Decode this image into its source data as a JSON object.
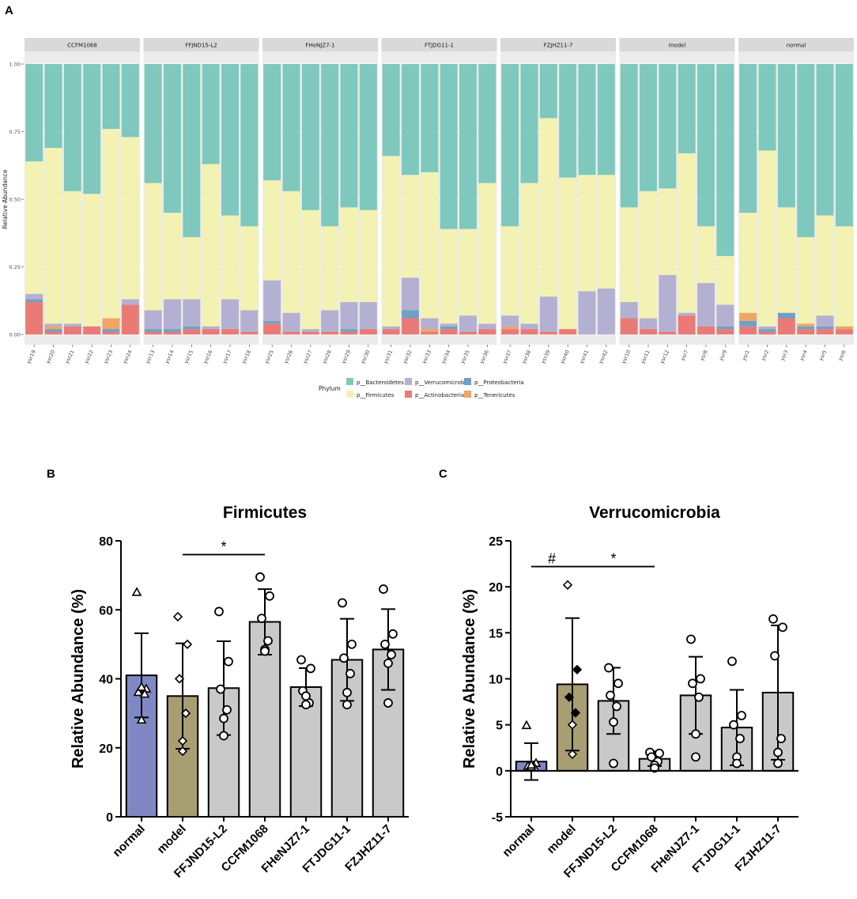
{
  "chart_data": [
    {
      "panel": "A",
      "type": "bar",
      "stacked": true,
      "ylabel": "Relative Abundance",
      "ylim": [
        0,
        1
      ],
      "yticks": [
        "0.00",
        "0.25",
        "0.50",
        "0.75",
        "1.00"
      ],
      "legend_title": "Phylum",
      "phyla": [
        "p__Actinobacteria",
        "p__Proteobacteria",
        "p__Tenericutes",
        "p__Verrucomicrobia",
        "p__Firmicutes",
        "p__Bacteroidetes"
      ],
      "legend": [
        {
          "name": "p__Bacteroidetes",
          "color": "#7ec8bd"
        },
        {
          "name": "p__Firmicutes",
          "color": "#f4f2b2"
        },
        {
          "name": "p__Verrucomicrobia",
          "color": "#b3b0d2"
        },
        {
          "name": "p__Actinobacteria",
          "color": "#ea7a76"
        },
        {
          "name": "p__Proteobacteria",
          "color": "#6fa0c4"
        },
        {
          "name": "p__Tenericutes",
          "color": "#eea567"
        }
      ],
      "colors": {
        "p__Bacteroidetes": "#7ec8bd",
        "p__Firmicutes": "#f4f2b2",
        "p__Verrucomicrobia": "#b3b0d2",
        "p__Actinobacteria": "#ea7a76",
        "p__Proteobacteria": "#6fa0c4",
        "p__Tenericutes": "#eea567"
      },
      "facets": [
        {
          "name": "CCFM1068",
          "samples": [
            {
              "id": "ysr19",
              "values": [
                0.12,
                0.01,
                0.0,
                0.02,
                0.49,
                0.36
              ]
            },
            {
              "id": "ysr20",
              "values": [
                0.01,
                0.01,
                0.01,
                0.01,
                0.65,
                0.31
              ]
            },
            {
              "id": "ysr21",
              "values": [
                0.03,
                0.0,
                0.0,
                0.01,
                0.49,
                0.47
              ]
            },
            {
              "id": "ysr22",
              "values": [
                0.03,
                0.0,
                0.0,
                0.0,
                0.49,
                0.48
              ]
            },
            {
              "id": "ysr23",
              "values": [
                0.01,
                0.01,
                0.04,
                0.0,
                0.7,
                0.24
              ]
            },
            {
              "id": "ysr24",
              "values": [
                0.11,
                0.0,
                0.0,
                0.02,
                0.6,
                0.27
              ]
            }
          ]
        },
        {
          "name": "FFJND15-L2",
          "samples": [
            {
              "id": "ysr13",
              "values": [
                0.01,
                0.01,
                0.0,
                0.07,
                0.47,
                0.44
              ]
            },
            {
              "id": "ysr14",
              "values": [
                0.01,
                0.01,
                0.0,
                0.11,
                0.32,
                0.55
              ]
            },
            {
              "id": "ysr15",
              "values": [
                0.02,
                0.01,
                0.0,
                0.1,
                0.23,
                0.64
              ]
            },
            {
              "id": "ysr16",
              "values": [
                0.02,
                0.0,
                0.0,
                0.01,
                0.6,
                0.37
              ]
            },
            {
              "id": "ysr17",
              "values": [
                0.02,
                0.0,
                0.0,
                0.11,
                0.31,
                0.56
              ]
            },
            {
              "id": "ysr18",
              "values": [
                0.01,
                0.0,
                0.0,
                0.08,
                0.31,
                0.6
              ]
            }
          ]
        },
        {
          "name": "FHeNJZ7-1",
          "samples": [
            {
              "id": "ysr25",
              "values": [
                0.04,
                0.01,
                0.0,
                0.15,
                0.37,
                0.43
              ]
            },
            {
              "id": "ysr26",
              "values": [
                0.01,
                0.0,
                0.0,
                0.07,
                0.45,
                0.47
              ]
            },
            {
              "id": "ysr27",
              "values": [
                0.01,
                0.0,
                0.0,
                0.01,
                0.44,
                0.54
              ]
            },
            {
              "id": "ysr28",
              "values": [
                0.01,
                0.0,
                0.0,
                0.08,
                0.31,
                0.6
              ]
            },
            {
              "id": "ysr29",
              "values": [
                0.01,
                0.01,
                0.0,
                0.1,
                0.35,
                0.53
              ]
            },
            {
              "id": "ysr30",
              "values": [
                0.02,
                0.0,
                0.0,
                0.1,
                0.34,
                0.54
              ]
            }
          ]
        },
        {
          "name": "FTJDG11-1",
          "samples": [
            {
              "id": "ysr31",
              "values": [
                0.02,
                0.0,
                0.0,
                0.01,
                0.63,
                0.34
              ]
            },
            {
              "id": "ysr32",
              "values": [
                0.06,
                0.03,
                0.0,
                0.12,
                0.38,
                0.41
              ]
            },
            {
              "id": "ysr33",
              "values": [
                0.01,
                0.0,
                0.01,
                0.04,
                0.54,
                0.4
              ]
            },
            {
              "id": "ysr34",
              "values": [
                0.02,
                0.01,
                0.0,
                0.01,
                0.35,
                0.61
              ]
            },
            {
              "id": "ysr35",
              "values": [
                0.01,
                0.0,
                0.0,
                0.06,
                0.32,
                0.61
              ]
            },
            {
              "id": "ysr36",
              "values": [
                0.02,
                0.0,
                0.0,
                0.02,
                0.52,
                0.44
              ]
            }
          ]
        },
        {
          "name": "FZJHZ11-7",
          "samples": [
            {
              "id": "ysr37",
              "values": [
                0.02,
                0.0,
                0.01,
                0.04,
                0.33,
                0.6
              ]
            },
            {
              "id": "ysr38",
              "values": [
                0.02,
                0.0,
                0.0,
                0.02,
                0.52,
                0.44
              ]
            },
            {
              "id": "ysr39",
              "values": [
                0.01,
                0.0,
                0.0,
                0.13,
                0.66,
                0.2
              ]
            },
            {
              "id": "ysr40",
              "values": [
                0.02,
                0.0,
                0.0,
                0.0,
                0.56,
                0.42
              ]
            },
            {
              "id": "ysr41",
              "values": [
                0.0,
                0.0,
                0.0,
                0.16,
                0.43,
                0.41
              ]
            },
            {
              "id": "ysr42",
              "values": [
                0.0,
                0.0,
                0.0,
                0.17,
                0.42,
                0.41
              ]
            }
          ]
        },
        {
          "name": "model",
          "samples": [
            {
              "id": "ysr10",
              "values": [
                0.06,
                0.0,
                0.0,
                0.06,
                0.35,
                0.53
              ]
            },
            {
              "id": "ysr11",
              "values": [
                0.02,
                0.0,
                0.0,
                0.04,
                0.47,
                0.47
              ]
            },
            {
              "id": "ysr12",
              "values": [
                0.01,
                0.0,
                0.0,
                0.21,
                0.32,
                0.46
              ]
            },
            {
              "id": "ysr7",
              "values": [
                0.07,
                0.0,
                0.0,
                0.01,
                0.59,
                0.33
              ]
            },
            {
              "id": "ysr8",
              "values": [
                0.03,
                0.0,
                0.0,
                0.16,
                0.21,
                0.6
              ]
            },
            {
              "id": "ysr9",
              "values": [
                0.02,
                0.01,
                0.0,
                0.08,
                0.18,
                0.71
              ]
            }
          ]
        },
        {
          "name": "normal",
          "samples": [
            {
              "id": "ysr1",
              "values": [
                0.03,
                0.02,
                0.03,
                0.0,
                0.37,
                0.55
              ]
            },
            {
              "id": "ysr2",
              "values": [
                0.01,
                0.01,
                0.0,
                0.01,
                0.65,
                0.32
              ]
            },
            {
              "id": "ysr3",
              "values": [
                0.06,
                0.02,
                0.0,
                0.0,
                0.39,
                0.53
              ]
            },
            {
              "id": "ysr4",
              "values": [
                0.02,
                0.01,
                0.01,
                0.0,
                0.32,
                0.64
              ]
            },
            {
              "id": "ysr5",
              "values": [
                0.02,
                0.01,
                0.0,
                0.04,
                0.37,
                0.56
              ]
            },
            {
              "id": "ysr6",
              "values": [
                0.02,
                0.0,
                0.01,
                0.0,
                0.37,
                0.6
              ]
            }
          ]
        }
      ]
    },
    {
      "panel": "B",
      "type": "bar",
      "title": "Firmicutes",
      "ylabel": "Relative Abundance (%)",
      "ylim": [
        0,
        80
      ],
      "yticks": [
        0,
        20,
        40,
        60,
        80
      ],
      "categories": [
        "normal",
        "model",
        "FFJND15-L2",
        "CCFM1068",
        "FHeNJZ7-1",
        "FTJDG11-1",
        "FZJHZ11-7"
      ],
      "values": [
        41.0,
        35.0,
        37.3,
        56.5,
        37.6,
        45.5,
        48.5
      ],
      "sd": [
        12.2,
        15.3,
        13.6,
        9.5,
        5.5,
        11.9,
        11.7
      ],
      "points": [
        [
          65.0,
          37.0,
          36.0,
          35.5,
          37.5,
          28.0
        ],
        [
          58.0,
          50.0,
          40.0,
          30.0,
          22.0,
          19.0
        ],
        [
          59.5,
          45.0,
          37.0,
          31.0,
          28.5,
          23.5
        ],
        [
          69.5,
          64.0,
          57.5,
          51.0,
          48.5,
          48.0
        ],
        [
          45.5,
          43.0,
          36.5,
          33.0,
          32.5,
          35.0
        ],
        [
          62.0,
          50.0,
          46.0,
          41.5,
          36.0,
          32.5
        ],
        [
          66.0,
          53.0,
          50.0,
          47.0,
          44.5,
          33.0
        ]
      ],
      "markers": [
        "triangle",
        "diamond",
        "circle",
        "circle",
        "circle",
        "circle",
        "circle"
      ],
      "bar_colors": [
        "#8088c4",
        "#a89e74",
        "#c9c9c9",
        "#c9c9c9",
        "#c9c9c9",
        "#c9c9c9",
        "#c9c9c9"
      ],
      "annotations": [
        {
          "label": "*",
          "from": "model",
          "to": "CCFM1068",
          "y": 76
        }
      ]
    },
    {
      "panel": "C",
      "type": "bar",
      "title": "Verrucomicrobia",
      "ylabel": "Relative Abundance (%)",
      "ylim": [
        -5,
        25
      ],
      "yticks": [
        -5,
        0,
        5,
        10,
        15,
        20,
        25
      ],
      "categories": [
        "normal",
        "model",
        "FFJND15-L2",
        "CCFM1068",
        "FHeNJZ7-1",
        "FTJDG11-1",
        "FZJHZ11-7"
      ],
      "values": [
        1.0,
        9.4,
        7.6,
        1.3,
        8.2,
        4.7,
        8.5
      ],
      "sd": [
        2.0,
        7.2,
        3.6,
        0.8,
        4.2,
        4.1,
        7.3
      ],
      "points": [
        [
          4.9,
          0.8,
          0.5,
          0.3,
          0.4,
          0.6
        ],
        [
          20.2,
          11.0,
          8.0,
          6.3,
          5.0,
          1.8
        ],
        [
          11.2,
          9.5,
          8.2,
          7.0,
          5.3,
          0.8
        ],
        [
          2.0,
          1.9,
          1.5,
          1.0,
          0.6,
          0.3
        ],
        [
          14.3,
          10.0,
          9.5,
          8.0,
          4.0,
          1.5
        ],
        [
          11.9,
          6.0,
          5.0,
          3.5,
          1.5,
          0.8
        ],
        [
          16.5,
          15.6,
          12.5,
          3.5,
          2.0,
          0.8
        ]
      ],
      "markers": [
        "triangle",
        "diamond",
        "circle",
        "circle",
        "circle",
        "circle",
        "circle"
      ],
      "filled_points": {
        "model": [
          1,
          2,
          3
        ]
      },
      "bar_colors": [
        "#8088c4",
        "#a89e74",
        "#c9c9c9",
        "#c9c9c9",
        "#c9c9c9",
        "#c9c9c9",
        "#c9c9c9"
      ],
      "annotations": [
        {
          "label": "#",
          "from": "normal",
          "to": "model",
          "y": 22.2
        },
        {
          "label": "*",
          "from": "model",
          "to": "CCFM1068",
          "y": 22.2
        }
      ]
    }
  ],
  "labels": {
    "panel_a": "A",
    "panel_b": "B",
    "panel_c": "C"
  }
}
